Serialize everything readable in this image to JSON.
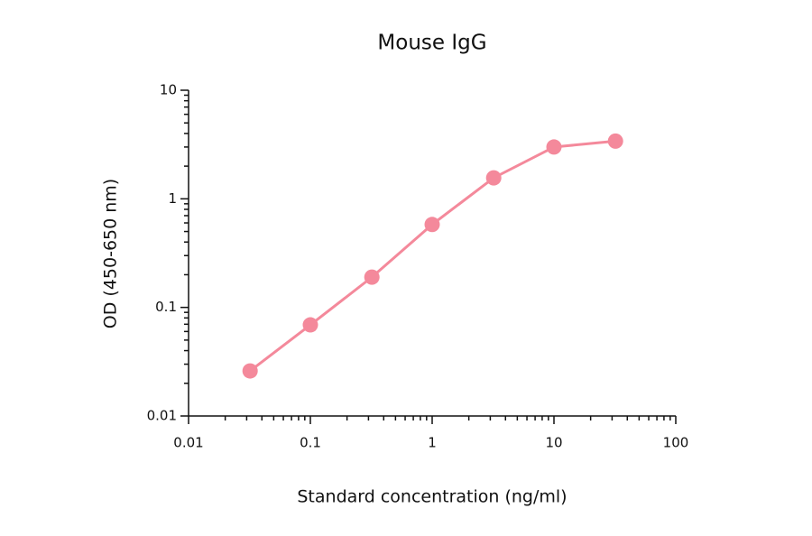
{
  "chart_data": {
    "type": "line",
    "title": "Mouse IgG",
    "x_label": "Standard concentration (ng/ml)",
    "y_label": "OD (450-650 nm)",
    "x": [
      0.032,
      0.1,
      0.32,
      1,
      3.2,
      10,
      32
    ],
    "series": [
      {
        "name": "Mouse IgG",
        "color": "#f4899b",
        "values": [
          0.026,
          0.069,
          0.19,
          0.58,
          1.56,
          3.0,
          3.4
        ]
      }
    ],
    "xlim": [
      0.01,
      100
    ],
    "ylim": [
      0.01,
      10
    ],
    "xticks": [
      0.01,
      0.1,
      1,
      10,
      100
    ],
    "yticks": [
      0.01,
      0.1,
      1,
      10
    ],
    "x_log": true,
    "y_log": true,
    "grid": false,
    "legend": false
  }
}
